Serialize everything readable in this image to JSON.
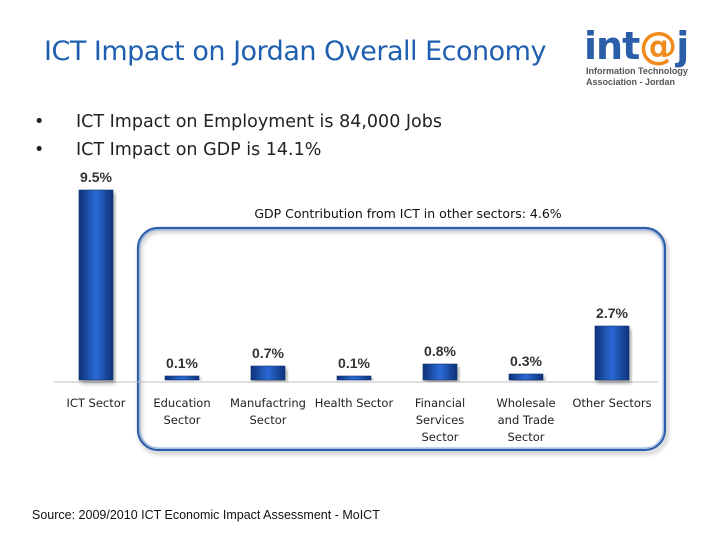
{
  "title": "ICT Impact on Jordan Overall Economy",
  "logo": {
    "main_prefix": "int",
    "main_at": "@",
    "main_suffix": "j",
    "line1": "Information Technology",
    "line2": "Association - Jordan",
    "colors": {
      "blue": "#2a5ea8",
      "orange": "#f08a1c"
    }
  },
  "bullets": [
    "ICT Impact on Employment is 84,000 Jobs",
    "ICT Impact on GDP is 14.1%"
  ],
  "source": "Source: 2009/2010 ICT Economic Impact Assessment - MoICT",
  "chart_data": {
    "type": "bar",
    "title": "",
    "annotation": "GDP Contribution from ICT in other sectors: 4.6%",
    "categories": [
      [
        "ICT Sector"
      ],
      [
        "Education",
        "Sector"
      ],
      [
        "Manufactring",
        "Sector"
      ],
      [
        "Health Sector"
      ],
      [
        "Financial",
        "Services",
        "Sector"
      ],
      [
        "Wholesale",
        "and Trade",
        "Sector"
      ],
      [
        "Other Sectors"
      ]
    ],
    "values": [
      9.5,
      0.1,
      0.7,
      0.1,
      0.8,
      0.3,
      2.7
    ],
    "labels": [
      "9.5%",
      "0.1%",
      "0.7%",
      "0.1%",
      "0.8%",
      "0.3%",
      "2.7%"
    ],
    "ylim": [
      0,
      9.5
    ],
    "grid": false,
    "bar_color": "#1f55b5",
    "bar_dark": "#0e3276",
    "frame_color": "#2d5fa8"
  }
}
